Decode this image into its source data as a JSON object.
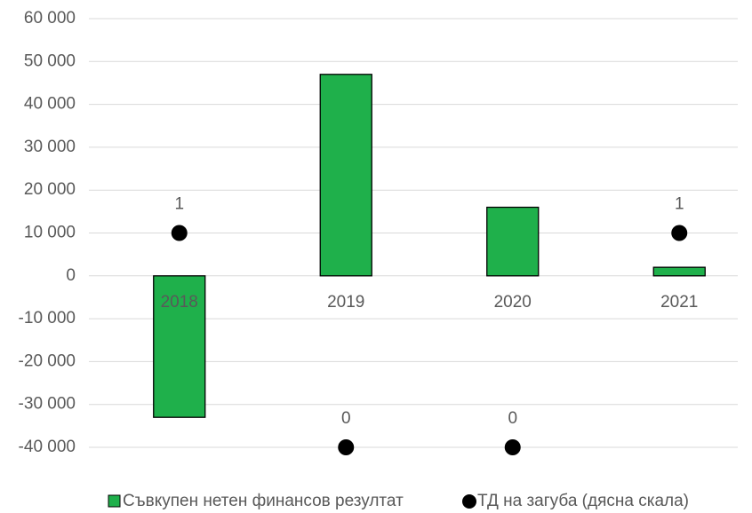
{
  "chart_data": {
    "type": "bar",
    "categories": [
      "2018",
      "2019",
      "2020",
      "2021"
    ],
    "series": [
      {
        "name": "Съвкупен нетен финансов резултат",
        "type": "bar",
        "color": "#1fb04b",
        "values": [
          -33000,
          47000,
          16000,
          2000
        ]
      },
      {
        "name": "ТД на загуба (дясна скала)",
        "type": "scatter",
        "axis": "y2",
        "color": "#000000",
        "values": [
          1,
          0,
          0,
          1
        ]
      }
    ],
    "ylim": [
      -40000,
      60000
    ],
    "yticks": [
      {
        "value": -40000,
        "label": "-40 000"
      },
      {
        "value": -30000,
        "label": "-30 000"
      },
      {
        "value": -20000,
        "label": "-20 000"
      },
      {
        "value": -10000,
        "label": "-10 000"
      },
      0,
      {
        "value": 10000,
        "label": "10 000"
      },
      {
        "value": 20000,
        "label": "20 000"
      },
      {
        "value": 30000,
        "label": "30 000"
      },
      {
        "value": 40000,
        "label": "40 000"
      },
      {
        "value": 50000,
        "label": "50 000"
      },
      {
        "value": 60000,
        "label": "60 000"
      }
    ],
    "y2lim": [
      0,
      2
    ],
    "grid": true,
    "legend": "bottom"
  }
}
